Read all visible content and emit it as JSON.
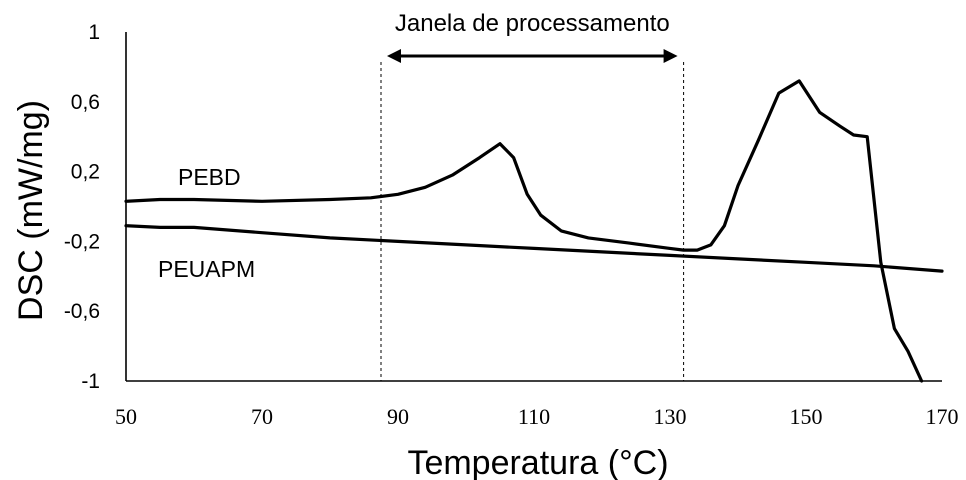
{
  "chart_data": {
    "type": "line",
    "xlabel": "Temperatura (°C)",
    "ylabel": "DSC (mW/mg)",
    "xlim": [
      50,
      170
    ],
    "ylim": [
      -1,
      1
    ],
    "x_ticks": [
      "50",
      "70",
      "90",
      "110",
      "130",
      "150",
      "170"
    ],
    "y_ticks": [
      "1",
      "0,6",
      "0,2",
      "-0,2",
      "-0,6",
      "-1"
    ],
    "grid": false,
    "series": [
      {
        "name": "PEBD",
        "x": [
          50,
          55,
          60,
          70,
          80,
          86,
          90,
          94,
          98,
          102,
          105,
          107,
          109,
          111,
          114,
          118,
          124,
          130,
          132,
          134,
          136,
          138,
          140,
          143,
          146,
          149,
          152,
          155,
          157,
          159,
          161,
          163,
          165,
          167
        ],
        "y": [
          0.03,
          0.04,
          0.04,
          0.03,
          0.04,
          0.05,
          0.07,
          0.11,
          0.18,
          0.28,
          0.36,
          0.28,
          0.07,
          -0.05,
          -0.14,
          -0.18,
          -0.21,
          -0.24,
          -0.25,
          -0.25,
          -0.22,
          -0.11,
          0.12,
          0.38,
          0.65,
          0.72,
          0.54,
          0.46,
          0.41,
          0.4,
          -0.32,
          -0.7,
          -0.83,
          -1.0
        ]
      },
      {
        "name": "PEUAPM",
        "x": [
          50,
          55,
          60,
          70,
          80,
          90,
          100,
          110,
          120,
          130,
          140,
          150,
          160,
          170
        ],
        "y": [
          -0.11,
          -0.12,
          -0.12,
          -0.15,
          -0.18,
          -0.2,
          -0.22,
          -0.24,
          -0.26,
          -0.28,
          -0.3,
          -0.32,
          -0.34,
          -0.37
        ]
      }
    ],
    "annotations": {
      "window_label": "Janela de processamento",
      "window_x": [
        87.5,
        132
      ]
    }
  }
}
